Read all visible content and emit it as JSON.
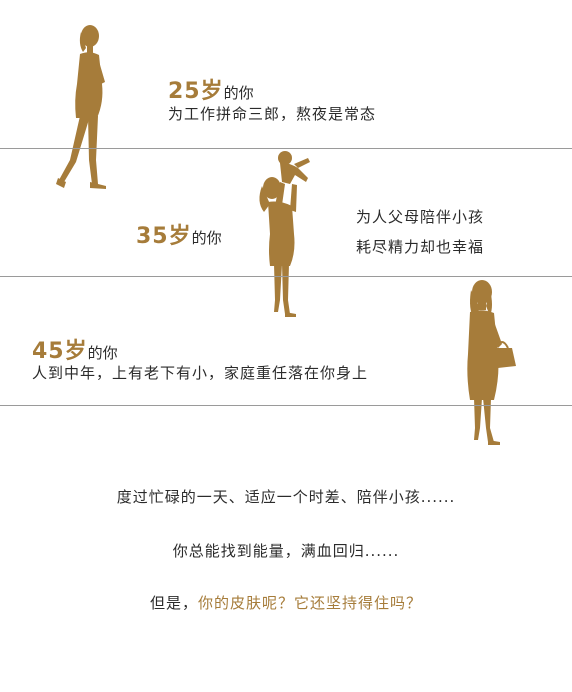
{
  "colors": {
    "accent": "#a67c3a",
    "text": "#2b2b2b",
    "divider": "#9a9a9a"
  },
  "stages": [
    {
      "age": "25岁",
      "suffix": "的你",
      "lines": [
        "为工作拼命三郎，熬夜是常态"
      ],
      "figure": "woman-walking-silhouette"
    },
    {
      "age": "35岁",
      "suffix": "的你",
      "lines": [
        "为人父母陪伴小孩",
        "耗尽精力却也幸福"
      ],
      "figure": "mother-lifting-baby-silhouette"
    },
    {
      "age": "45岁",
      "suffix": "的你",
      "lines": [
        "人到中年，上有老下有小，家庭重任落在你身上"
      ],
      "figure": "woman-with-handbag-silhouette"
    }
  ],
  "footer": {
    "line1": "度过忙碌的一天、适应一个时差、陪伴小孩......",
    "line2": "你总能找到能量，满血回归......",
    "line3_prefix": "但是，",
    "line3_accent": "你的皮肤呢？它还坚持得住吗？"
  }
}
